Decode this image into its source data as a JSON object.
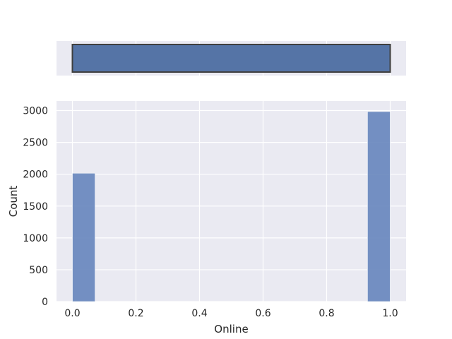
{
  "chart_data": [
    {
      "type": "box",
      "orientation": "horizontal",
      "variable": "Online",
      "summary": {
        "min": 0,
        "q1": 0,
        "median": 1,
        "q3": 1,
        "max": 1
      },
      "xlim": [
        -0.05,
        1.05
      ],
      "grid": true,
      "colors": {
        "face": "#5574a6",
        "edge": "#3f3f3f",
        "background": "#eaeaf2"
      }
    },
    {
      "type": "bar",
      "kind": "histogram",
      "xlabel": "Online",
      "ylabel": "Count",
      "xlim": [
        -0.05,
        1.05
      ],
      "ylim": [
        0,
        3150
      ],
      "xticks": [
        "0.0",
        "0.2",
        "0.4",
        "0.6",
        "0.8",
        "1.0"
      ],
      "yticks": [
        "0",
        "500",
        "1000",
        "1500",
        "2000",
        "2500",
        "3000"
      ],
      "bins": [
        {
          "x0": 0.0,
          "x1": 0.0714,
          "count": 2016
        },
        {
          "x0": 0.9286,
          "x1": 1.0,
          "count": 2984
        }
      ],
      "grid": true,
      "colors": {
        "bar": "#6685bd",
        "background": "#eaeaf2"
      }
    }
  ]
}
